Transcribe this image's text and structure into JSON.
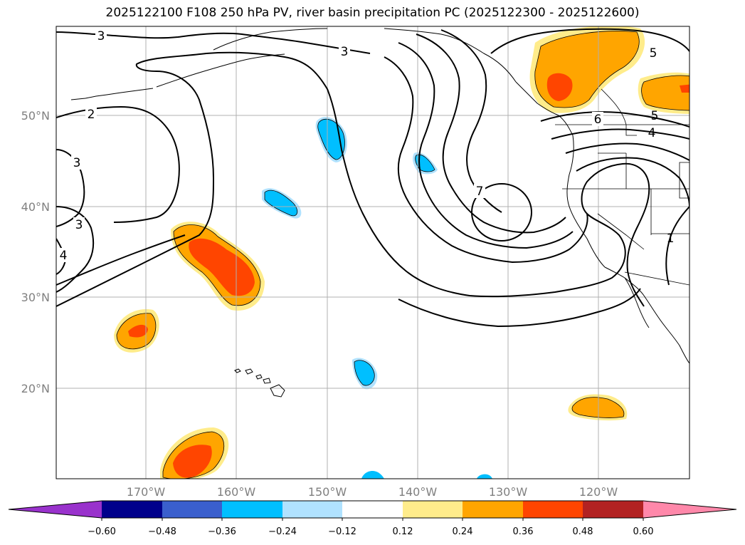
{
  "title": "2025122100 F108 250 hPa PV, river basin precipitation PC (2025122300 - 2025122600)",
  "map": {
    "lat_labels": [
      "50°N",
      "40°N",
      "30°N",
      "20°N"
    ],
    "lon_labels": [
      "170°W",
      "160°W",
      "150°W",
      "140°W",
      "130°W",
      "120°W"
    ],
    "contour_labels": [
      "3",
      "3",
      "2",
      "3",
      "3",
      "4",
      "7",
      "6",
      "5",
      "5",
      "4",
      "1"
    ]
  },
  "colorbar": {
    "tick_labels": [
      "−0.60",
      "−0.48",
      "−0.36",
      "−0.24",
      "−0.12",
      "0.12",
      "0.24",
      "0.36",
      "0.48",
      "0.60"
    ],
    "colors": [
      "#9932cc",
      "#00008b",
      "#3a5fcd",
      "#00bfff",
      "#b0e2ff",
      "#ffffff",
      "#ffec8b",
      "#ffa500",
      "#ff4500",
      "#b22222",
      "#ff88aa"
    ]
  }
}
